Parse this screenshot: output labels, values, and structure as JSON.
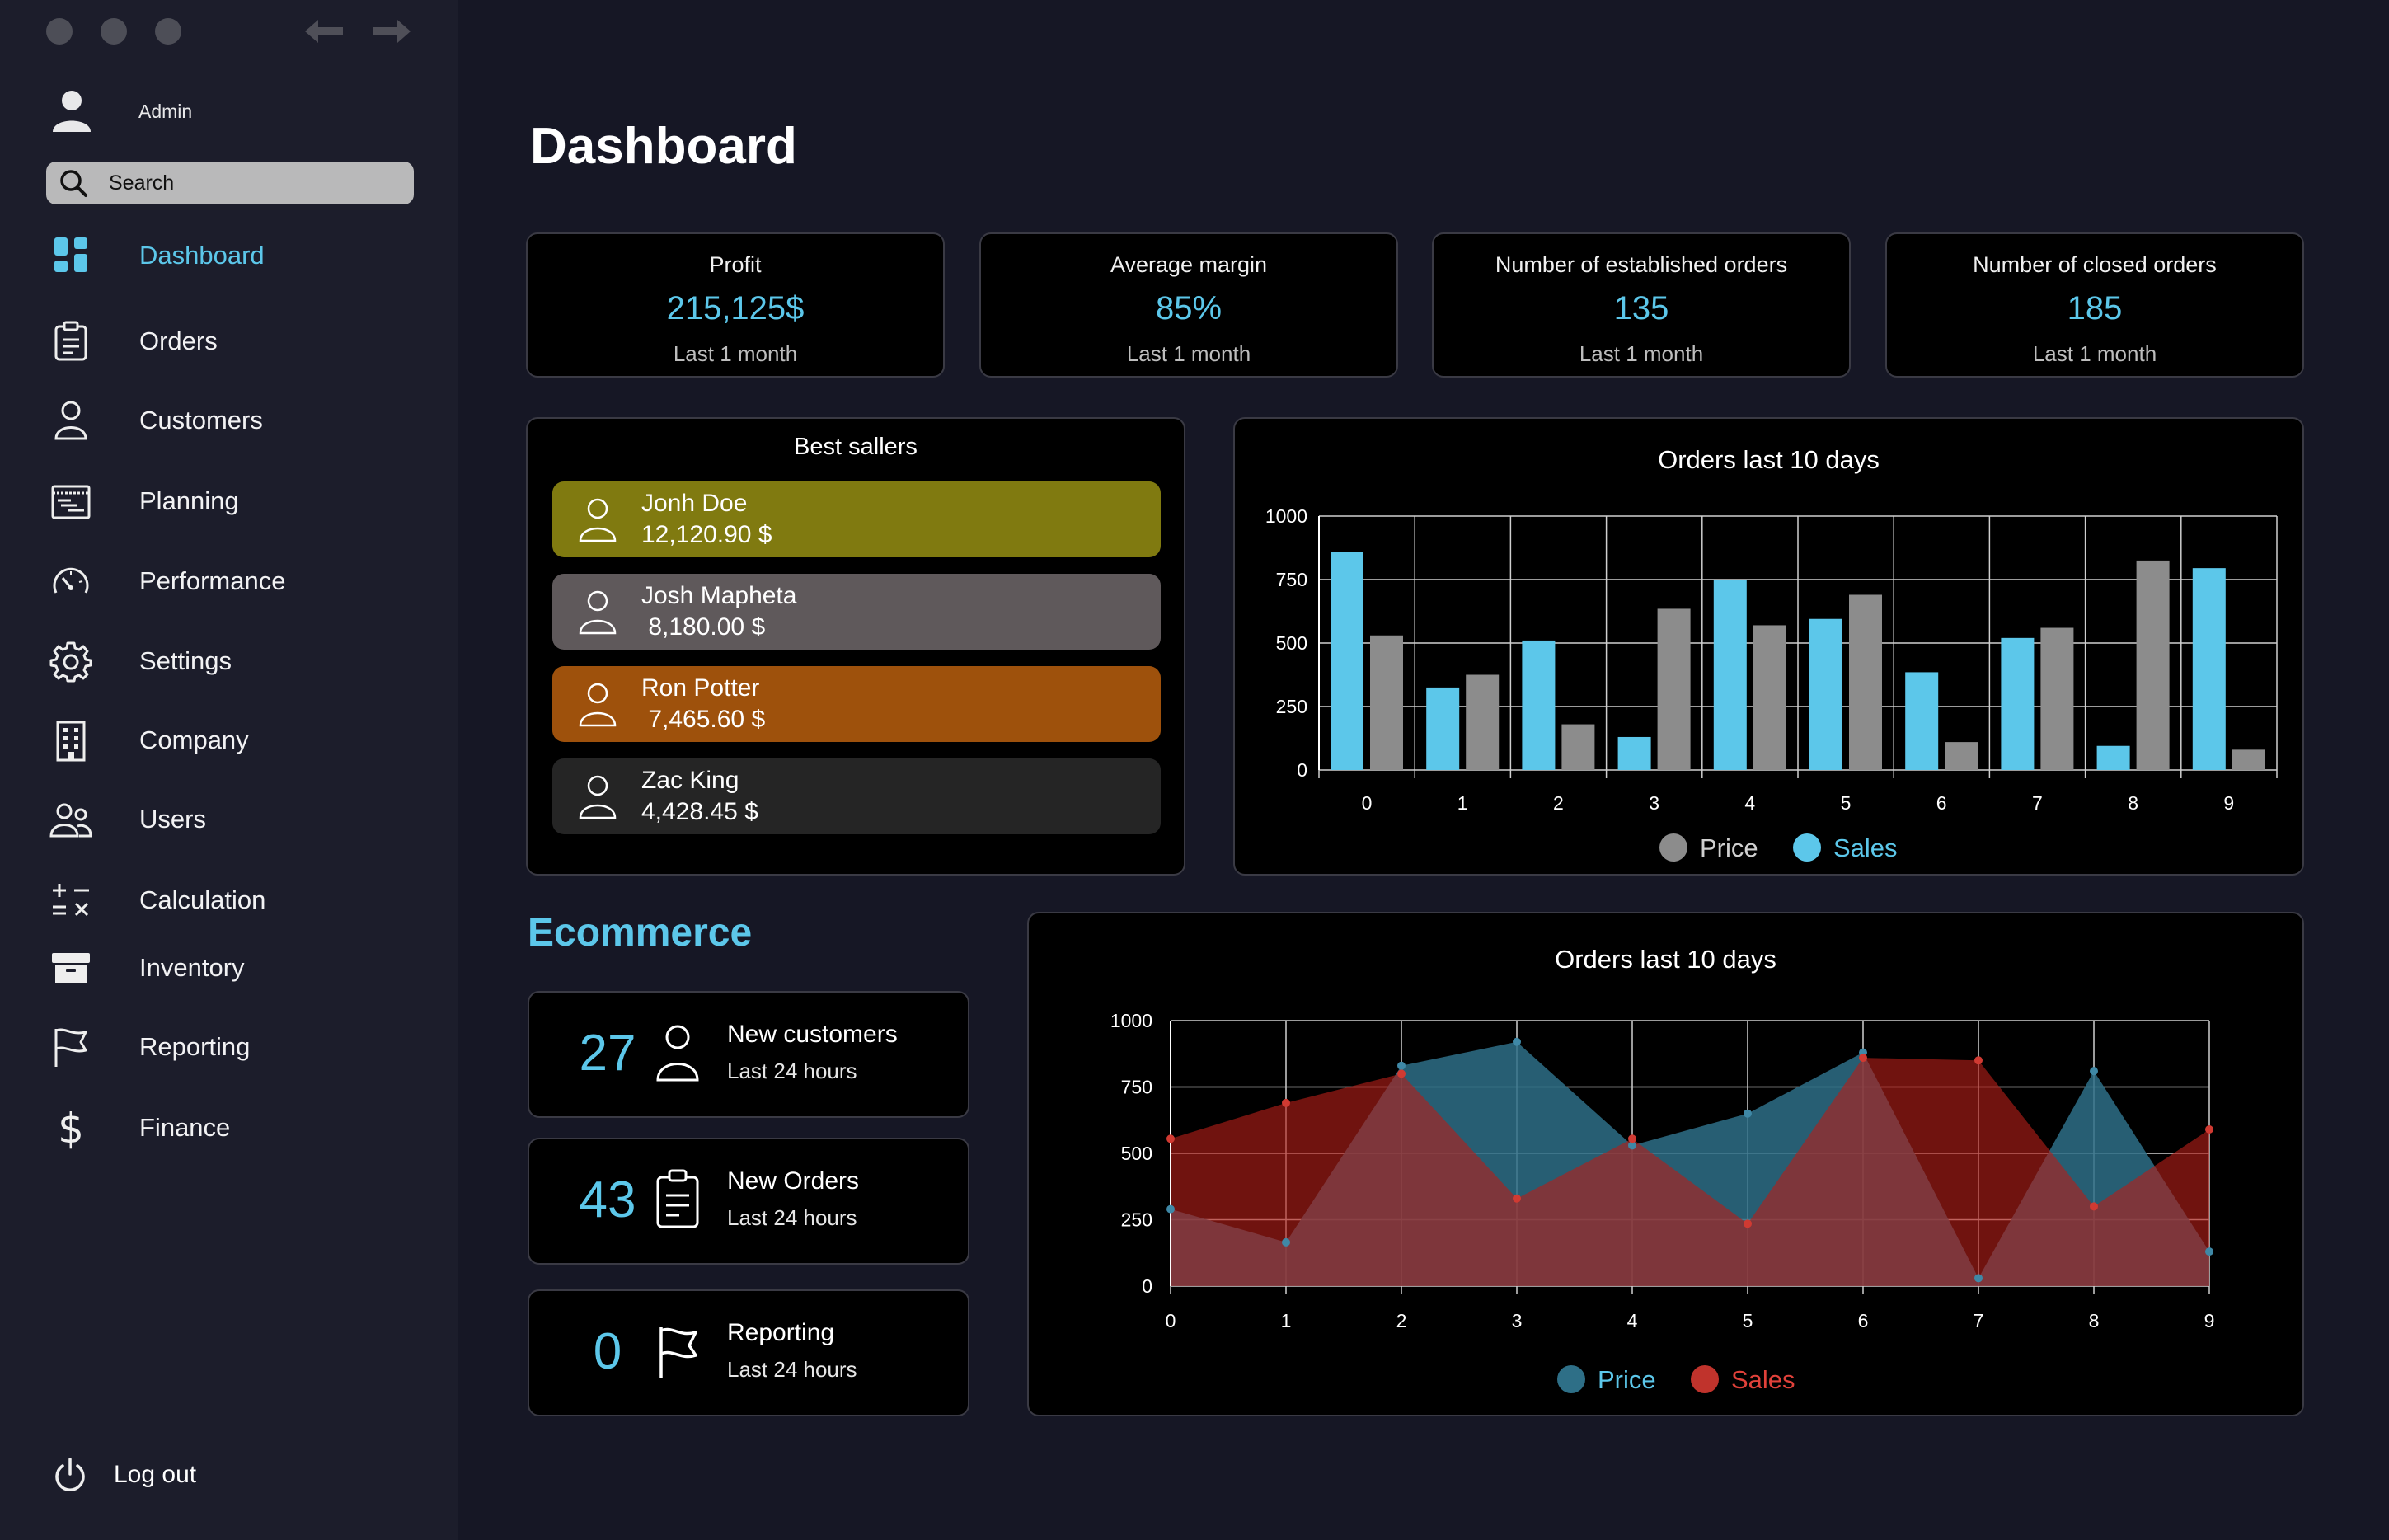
{
  "sidebar": {
    "user_name": "Admin",
    "search_placeholder": "Search",
    "items": [
      {
        "label": "Dashboard",
        "icon": "dashboard-icon"
      },
      {
        "label": "Orders",
        "icon": "clipboard-icon"
      },
      {
        "label": "Customers",
        "icon": "user-icon"
      },
      {
        "label": "Planning",
        "icon": "calendar-icon"
      },
      {
        "label": "Performance",
        "icon": "gauge-icon"
      },
      {
        "label": "Settings",
        "icon": "gear-icon"
      },
      {
        "label": "Company",
        "icon": "building-icon"
      },
      {
        "label": "Users",
        "icon": "users-icon"
      },
      {
        "label": "Calculation",
        "icon": "calculator-icon"
      },
      {
        "label": "Inventory",
        "icon": "archive-icon"
      },
      {
        "label": "Reporting",
        "icon": "flag-icon"
      },
      {
        "label": "Finance",
        "icon": "dollar-icon"
      }
    ],
    "logout_label": "Log out"
  },
  "main": {
    "title": "Dashboard",
    "stats": [
      {
        "label": "Profit",
        "value": "215,125$",
        "sub": "Last 1 month"
      },
      {
        "label": "Average margin",
        "value": "85%",
        "sub": "Last 1 month"
      },
      {
        "label": "Number of established orders",
        "value": "135",
        "sub": "Last 1 month"
      },
      {
        "label": "Number of closed orders",
        "value": "185",
        "sub": "Last 1 month"
      }
    ],
    "best_sellers": {
      "title": "Best sallers",
      "items": [
        {
          "name": "Jonh Doe",
          "value": "12,120.90 $",
          "color": "#807a10"
        },
        {
          "name": "Josh Mapheta",
          "value": " 8,180.00 $",
          "color": "#5f595b"
        },
        {
          "name": "Ron Potter",
          "value": " 7,465.60 $",
          "color": "#9e510c"
        },
        {
          "name": "Zac King",
          "value": "4,428.45 $",
          "color": "#252525"
        }
      ]
    },
    "ecommerce": {
      "title": "Ecommerce",
      "cards": [
        {
          "number": "27",
          "label": "New customers",
          "sub": "Last 24 hours",
          "icon": "user-icon"
        },
        {
          "number": "43",
          "label": "New Orders",
          "sub": "Last 24 hours",
          "icon": "clipboard-icon"
        },
        {
          "number": "0",
          "label": "Reporting",
          "sub": "Last 24 hours",
          "icon": "flag-icon"
        }
      ]
    }
  },
  "chart_data": [
    {
      "type": "bar",
      "title": "Orders last 10 days",
      "categories": [
        "0",
        "1",
        "2",
        "3",
        "4",
        "5",
        "6",
        "7",
        "8",
        "9"
      ],
      "ylim": [
        0,
        1000
      ],
      "yticks": [
        "0",
        "250",
        "500",
        "750",
        "1000"
      ],
      "grid": true,
      "legend": "bottom",
      "series": [
        {
          "name": "Sales",
          "color": "#5cc7ea",
          "values": [
            860,
            325,
            510,
            130,
            750,
            595,
            385,
            520,
            95,
            795
          ]
        },
        {
          "name": "Price",
          "color": "#8c8c8c",
          "values": [
            530,
            375,
            180,
            635,
            570,
            690,
            110,
            560,
            825,
            80
          ]
        }
      ],
      "legend_order": [
        "Price",
        "Sales"
      ]
    },
    {
      "type": "area",
      "title": "Orders last 10 days",
      "categories": [
        "0",
        "1",
        "2",
        "3",
        "4",
        "5",
        "6",
        "7",
        "8",
        "9"
      ],
      "ylim": [
        0,
        1000
      ],
      "yticks": [
        "0",
        "250",
        "500",
        "750",
        "1000"
      ],
      "grid": true,
      "legend": "bottom",
      "series": [
        {
          "name": "Price",
          "color": "#2e6f87",
          "values": [
            290,
            165,
            830,
            920,
            530,
            650,
            880,
            30,
            810,
            130
          ]
        },
        {
          "name": "Sales",
          "color": "#c0332c",
          "values": [
            555,
            690,
            800,
            330,
            555,
            235,
            860,
            850,
            300,
            590
          ]
        }
      ]
    }
  ]
}
